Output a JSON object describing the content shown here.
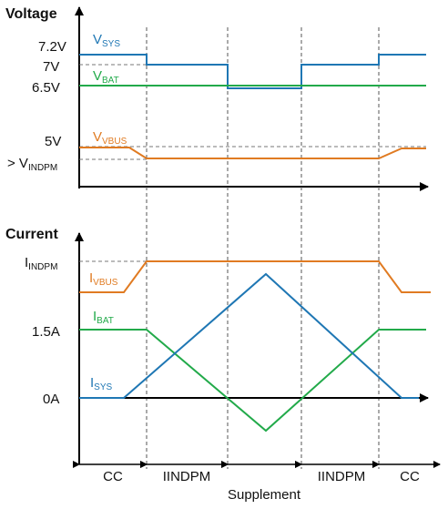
{
  "voltage_panel": {
    "title": "Voltage",
    "ticks": [
      "7.2V",
      "7V",
      "6.5V",
      "5V"
    ],
    "vindpm_prefix": "> V",
    "vindpm_sub": "INDPM",
    "traces": {
      "sys": {
        "main": "V",
        "sub": "SYS"
      },
      "bat": {
        "main": "V",
        "sub": "BAT"
      },
      "vbus": {
        "main": "V",
        "sub": "VBUS"
      }
    }
  },
  "current_panel": {
    "title": "Current",
    "tick_indpm_main": "I",
    "tick_indpm_sub": "INDPM",
    "ticks": [
      "1.5A",
      "0A"
    ],
    "traces": {
      "vbus": {
        "main": "I",
        "sub": "VBUS"
      },
      "bat": {
        "main": "I",
        "sub": "BAT"
      },
      "sys": {
        "main": "I",
        "sub": "SYS"
      }
    }
  },
  "phases": [
    "CC",
    "IINDPM",
    "Supplement",
    "IINDPM",
    "CC"
  ],
  "colors": {
    "sys": "#1f77b4",
    "bat": "#22aa4a",
    "vbus": "#e07b22",
    "axis": "#000000",
    "guide": "#555555"
  }
}
